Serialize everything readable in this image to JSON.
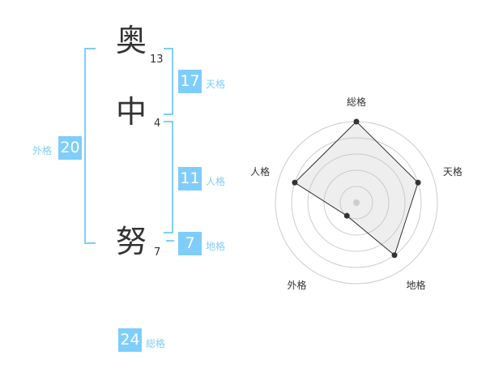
{
  "name": {
    "chars": [
      {
        "char": "奥",
        "strokes": "13"
      },
      {
        "char": "中",
        "strokes": "4"
      },
      {
        "char": "努",
        "strokes": "7"
      }
    ]
  },
  "kaku": {
    "tenkaku": {
      "value": "17",
      "label": "天格"
    },
    "jinkaku": {
      "value": "11",
      "label": "人格"
    },
    "chikaku": {
      "value": "7",
      "label": "地格"
    },
    "gaikaku": {
      "value": "20",
      "label": "外格"
    },
    "soukaku": {
      "value": "24",
      "label": "総格"
    }
  },
  "accent_color": "#7fcdfb",
  "chart_data": {
    "type": "radar",
    "axes": [
      "総格",
      "天格",
      "地格",
      "外格",
      "人格"
    ],
    "values": [
      5,
      4,
      4,
      1,
      4
    ],
    "range": [
      0,
      5
    ],
    "grid": "concentric circles"
  }
}
